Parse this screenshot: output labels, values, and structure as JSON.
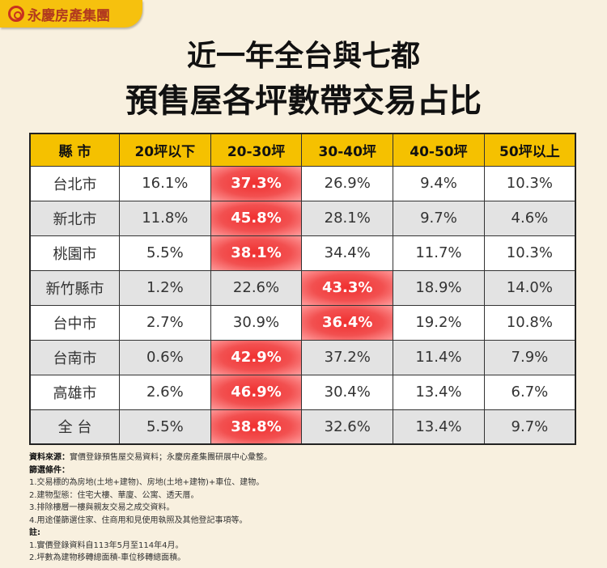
{
  "logo": "永慶房產集團",
  "title_line1": "近一年全台與七都",
  "title_line2": "預售屋各坪數帶交易占比",
  "chart_data": {
    "type": "table",
    "title": "近一年全台與七都 預售屋各坪數帶交易占比",
    "columns": [
      "縣 市",
      "20坪以下",
      "20-30坪",
      "30-40坪",
      "40-50坪",
      "50坪以上"
    ],
    "rows": [
      {
        "city": "台北市",
        "values": [
          "16.1%",
          "37.3%",
          "26.9%",
          "9.4%",
          "10.3%"
        ],
        "highlight": 1
      },
      {
        "city": "新北市",
        "values": [
          "11.8%",
          "45.8%",
          "28.1%",
          "9.7%",
          "4.6%"
        ],
        "highlight": 1
      },
      {
        "city": "桃園市",
        "values": [
          "5.5%",
          "38.1%",
          "34.4%",
          "11.7%",
          "10.3%"
        ],
        "highlight": 1
      },
      {
        "city": "新竹縣市",
        "values": [
          "1.2%",
          "22.6%",
          "43.3%",
          "18.9%",
          "14.0%"
        ],
        "highlight": 2
      },
      {
        "city": "台中市",
        "values": [
          "2.7%",
          "30.9%",
          "36.4%",
          "19.2%",
          "10.8%"
        ],
        "highlight": 2
      },
      {
        "city": "台南市",
        "values": [
          "0.6%",
          "42.9%",
          "37.2%",
          "11.4%",
          "7.9%"
        ],
        "highlight": 1
      },
      {
        "city": "高雄市",
        "values": [
          "2.6%",
          "46.9%",
          "30.4%",
          "13.4%",
          "6.7%"
        ],
        "highlight": 1
      },
      {
        "city": "全 台",
        "values": [
          "5.5%",
          "38.8%",
          "32.6%",
          "13.4%",
          "9.7%"
        ],
        "highlight": 1
      }
    ]
  },
  "notes": {
    "source_label": "資料來源：",
    "source": "實價登錄預售屋交易資料；永慶房產集團研展中心彙整。",
    "filter_label": "篩選條件：",
    "filters": [
      "1.交易標的為房地(土地+建物)、房地(土地+建物)+車位、建物。",
      "2.建物型態：住宅大樓、華廈、公寓、透天厝。",
      "3.排除樓層一樓與親友交易之成交資料。",
      "4.用途僅篩選住家、住商用和見使用執照及其他登記事項等。"
    ],
    "remark_label": "註:",
    "remarks": [
      "1.實價登錄資料自113年5月至114年4月。",
      "2.坪數為建物移轉總面積-車位移轉總面積。"
    ]
  }
}
